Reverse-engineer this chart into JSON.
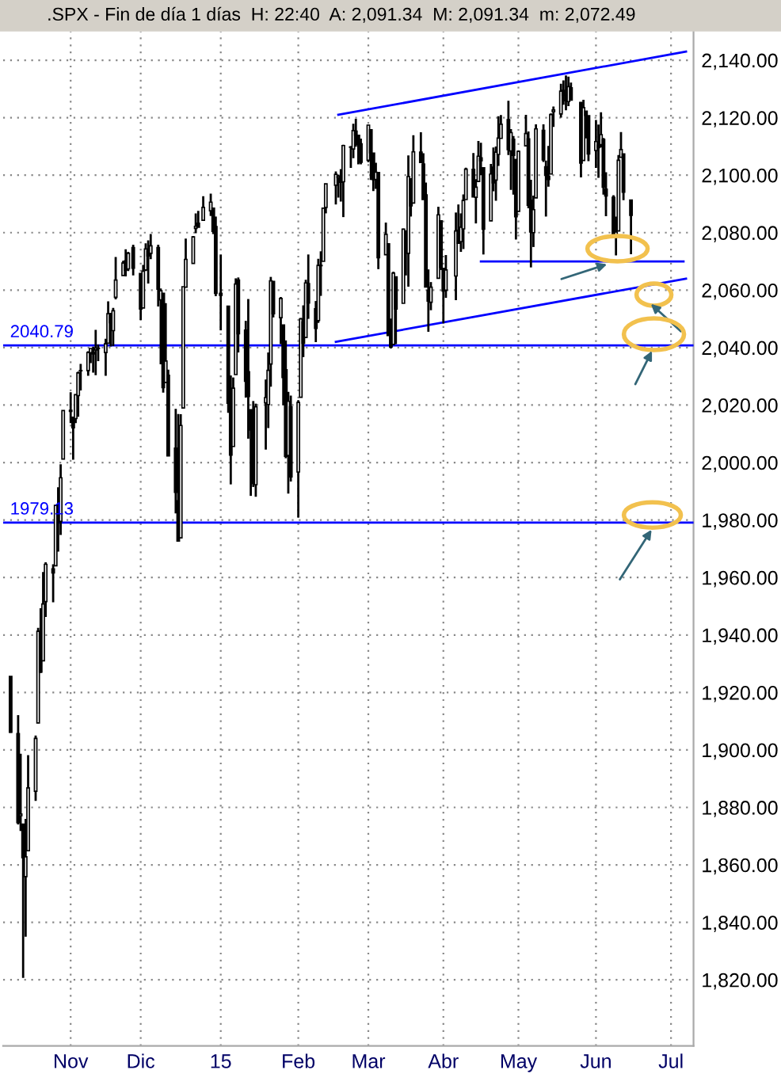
{
  "chart_data": {
    "type": "candlestick",
    "title": ".SPX - Fin de día 1 días  H: 22:40  A: 2,091.34  M: 2,091.34  m: 2,072.49",
    "x": [
      "2014-10-10",
      "2014-10-13",
      "2014-10-14",
      "2014-10-15",
      "2014-10-16",
      "2014-10-17",
      "2014-10-20",
      "2014-10-21",
      "2014-10-22",
      "2014-10-23",
      "2014-10-24",
      "2014-10-27",
      "2014-10-28",
      "2014-10-29",
      "2014-10-30",
      "2014-10-31",
      "2014-11-03",
      "2014-11-04",
      "2014-11-05",
      "2014-11-06",
      "2014-11-07",
      "2014-11-10",
      "2014-11-11",
      "2014-11-12",
      "2014-11-13",
      "2014-11-14",
      "2014-11-17",
      "2014-11-18",
      "2014-11-19",
      "2014-11-20",
      "2014-11-21",
      "2014-11-24",
      "2014-11-25",
      "2014-11-26",
      "2014-11-28",
      "2014-12-01",
      "2014-12-02",
      "2014-12-03",
      "2014-12-04",
      "2014-12-05",
      "2014-12-08",
      "2014-12-09",
      "2014-12-10",
      "2014-12-11",
      "2014-12-12",
      "2014-12-15",
      "2014-12-16",
      "2014-12-17",
      "2014-12-18",
      "2014-12-19",
      "2014-12-22",
      "2014-12-23",
      "2014-12-24",
      "2014-12-26",
      "2014-12-29",
      "2014-12-30",
      "2014-12-31",
      "2015-01-02",
      "2015-01-05",
      "2015-01-06",
      "2015-01-07",
      "2015-01-08",
      "2015-01-09",
      "2015-01-12",
      "2015-01-13",
      "2015-01-14",
      "2015-01-15",
      "2015-01-16",
      "2015-01-20",
      "2015-01-21",
      "2015-01-22",
      "2015-01-23",
      "2015-01-26",
      "2015-01-27",
      "2015-01-28",
      "2015-01-29",
      "2015-01-30",
      "2015-02-02",
      "2015-02-03",
      "2015-02-04",
      "2015-02-05",
      "2015-02-06",
      "2015-02-09",
      "2015-02-10",
      "2015-02-11",
      "2015-02-12",
      "2015-02-13",
      "2015-02-17",
      "2015-02-18",
      "2015-02-19",
      "2015-02-20",
      "2015-02-23",
      "2015-02-24",
      "2015-02-25",
      "2015-02-26",
      "2015-02-27",
      "2015-03-02",
      "2015-03-03",
      "2015-03-04",
      "2015-03-05",
      "2015-03-06",
      "2015-03-09",
      "2015-03-10",
      "2015-03-11",
      "2015-03-12",
      "2015-03-13",
      "2015-03-16",
      "2015-03-17",
      "2015-03-18",
      "2015-03-19",
      "2015-03-20",
      "2015-03-23",
      "2015-03-24",
      "2015-03-25",
      "2015-03-26",
      "2015-03-27",
      "2015-03-30",
      "2015-03-31",
      "2015-04-01",
      "2015-04-02",
      "2015-04-06",
      "2015-04-07",
      "2015-04-08",
      "2015-04-09",
      "2015-04-10",
      "2015-04-13",
      "2015-04-14",
      "2015-04-15",
      "2015-04-16",
      "2015-04-17",
      "2015-04-20",
      "2015-04-21",
      "2015-04-22",
      "2015-04-23",
      "2015-04-24",
      "2015-04-27",
      "2015-04-28",
      "2015-04-29",
      "2015-04-30",
      "2015-05-01",
      "2015-05-04",
      "2015-05-05",
      "2015-05-06",
      "2015-05-07",
      "2015-05-08",
      "2015-05-11",
      "2015-05-12",
      "2015-05-13",
      "2015-05-14",
      "2015-05-15",
      "2015-05-18",
      "2015-05-19",
      "2015-05-20",
      "2015-05-21",
      "2015-05-22",
      "2015-05-26",
      "2015-05-27",
      "2015-05-28",
      "2015-05-29",
      "2015-06-01",
      "2015-06-02",
      "2015-06-03",
      "2015-06-04",
      "2015-06-05",
      "2015-06-08",
      "2015-06-09",
      "2015-06-10",
      "2015-06-11",
      "2015-06-12",
      "2015-06-15"
    ],
    "ohlc": [
      [
        1925.6,
        1925.6,
        1906.0,
        1906.1
      ],
      [
        1905.7,
        1912.1,
        1874.1,
        1874.7
      ],
      [
        1877.1,
        1898.7,
        1871.8,
        1877.7
      ],
      [
        1874.2,
        1874.2,
        1820.7,
        1862.5
      ],
      [
        1855.9,
        1876.0,
        1835.0,
        1862.8
      ],
      [
        1864.9,
        1898.2,
        1864.9,
        1886.8
      ],
      [
        1885.6,
        1905.0,
        1882.3,
        1904.0
      ],
      [
        1909.4,
        1942.5,
        1909.4,
        1941.3
      ],
      [
        1941.3,
        1949.3,
        1926.8,
        1927.1
      ],
      [
        1931.0,
        1961.9,
        1931.0,
        1950.8
      ],
      [
        1951.6,
        1965.3,
        1946.3,
        1964.6
      ],
      [
        1963.0,
        1964.6,
        1951.4,
        1961.6
      ],
      [
        1964.1,
        1985.1,
        1964.1,
        1985.1
      ],
      [
        1983.3,
        1991.4,
        1969.0,
        1982.3
      ],
      [
        1979.5,
        1999.4,
        1974.8,
        1994.7
      ],
      [
        2001.2,
        2018.2,
        2001.2,
        2018.1
      ],
      [
        2018.2,
        2024.5,
        2013.7,
        2017.8
      ],
      [
        2015.8,
        2016.0,
        2001.0,
        2012.1
      ],
      [
        2015.3,
        2023.8,
        2013.7,
        2023.6
      ],
      [
        2023.3,
        2031.6,
        2015.9,
        2031.2
      ],
      [
        2032.0,
        2034.3,
        2025.1,
        2031.9
      ],
      [
        2032.0,
        2038.7,
        2030.2,
        2038.3
      ],
      [
        2038.2,
        2039.7,
        2034.6,
        2039.7
      ],
      [
        2037.8,
        2040.3,
        2031.3,
        2038.3
      ],
      [
        2039.2,
        2046.2,
        2030.4,
        2039.8
      ],
      [
        2039.7,
        2041.1,
        2035.3,
        2039.8
      ],
      [
        2038.3,
        2043.1,
        2030.2,
        2041.3
      ],
      [
        2041.5,
        2056.1,
        2041.5,
        2051.8
      ],
      [
        2051.2,
        2052.1,
        2040.4,
        2048.7
      ],
      [
        2045.9,
        2053.8,
        2040.5,
        2052.8
      ],
      [
        2057.5,
        2071.5,
        2056.8,
        2063.5
      ],
      [
        2065.1,
        2070.2,
        2065.1,
        2069.4
      ],
      [
        2070.2,
        2074.2,
        2064.8,
        2067.0
      ],
      [
        2067.4,
        2073.3,
        2066.6,
        2072.8
      ],
      [
        2074.8,
        2075.8,
        2065.1,
        2067.6
      ],
      [
        2065.8,
        2065.8,
        2049.6,
        2053.4
      ],
      [
        2053.8,
        2068.8,
        2053.8,
        2066.6
      ],
      [
        2067.0,
        2076.3,
        2066.6,
        2074.3
      ],
      [
        2073.6,
        2077.3,
        2062.3,
        2071.9
      ],
      [
        2072.8,
        2079.5,
        2070.8,
        2075.4
      ],
      [
        2074.8,
        2075.8,
        2054.3,
        2060.3
      ],
      [
        2056.6,
        2060.6,
        2034.2,
        2059.8
      ],
      [
        2058.9,
        2058.9,
        2024.3,
        2026.1
      ],
      [
        2027.9,
        2055.5,
        2027.9,
        2035.3
      ],
      [
        2030.4,
        2032.3,
        2002.3,
        2002.3
      ],
      [
        2005.0,
        2018.7,
        1982.3,
        1989.6
      ],
      [
        1986.7,
        2016.9,
        1972.6,
        1972.7
      ],
      [
        1973.8,
        2016.8,
        1973.8,
        2012.9
      ],
      [
        2019.0,
        2061.2,
        2019.0,
        2061.2
      ],
      [
        2061.0,
        2077.9,
        2061.0,
        2070.7
      ],
      [
        2069.3,
        2078.8,
        2069.3,
        2078.5
      ],
      [
        2081.5,
        2086.7,
        2079.8,
        2082.2
      ],
      [
        2083.3,
        2087.6,
        2081.9,
        2081.9
      ],
      [
        2084.3,
        2092.7,
        2084.3,
        2088.8
      ],
      [
        2087.6,
        2093.6,
        2085.8,
        2090.6
      ],
      [
        2088.5,
        2088.5,
        2079.5,
        2080.4
      ],
      [
        2082.1,
        2085.6,
        2057.9,
        2058.9
      ],
      [
        2058.9,
        2072.4,
        2046.0,
        2058.2
      ],
      [
        2054.4,
        2054.4,
        2017.3,
        2020.6
      ],
      [
        2022.2,
        2030.3,
        1992.4,
        2002.6
      ],
      [
        2005.6,
        2029.6,
        2005.6,
        2025.9
      ],
      [
        2030.6,
        2064.1,
        2030.6,
        2062.1
      ],
      [
        2063.5,
        2064.4,
        2038.3,
        2044.8
      ],
      [
        2046.1,
        2049.3,
        2022.6,
        2028.3
      ],
      [
        2031.6,
        2056.9,
        2008.3,
        2023.0
      ],
      [
        2018.4,
        2018.4,
        1988.4,
        2011.3
      ],
      [
        2013.8,
        2021.4,
        1991.5,
        1992.7
      ],
      [
        1992.3,
        2020.5,
        1988.1,
        2019.4
      ],
      [
        2020.8,
        2028.9,
        2004.5,
        2022.6
      ],
      [
        2020.2,
        2038.3,
        2012.0,
        2032.1
      ],
      [
        2034.3,
        2064.6,
        2026.4,
        2063.2
      ],
      [
        2063.0,
        2063.0,
        2050.5,
        2051.8
      ],
      [
        2050.4,
        2057.6,
        2041.2,
        2057.1
      ],
      [
        2047.9,
        2047.9,
        2019.9,
        2029.6
      ],
      [
        2032.3,
        2042.5,
        2001.5,
        2002.2
      ],
      [
        2002.5,
        2024.6,
        1989.2,
        2021.3
      ],
      [
        2019.4,
        2023.3,
        1993.4,
        1995.0
      ],
      [
        1996.7,
        2021.7,
        1980.9,
        2020.9
      ],
      [
        2022.7,
        2050.3,
        2022.7,
        2050.0
      ],
      [
        2048.9,
        2054.7,
        2036.7,
        2041.5
      ],
      [
        2043.5,
        2063.6,
        2043.5,
        2062.5
      ],
      [
        2062.3,
        2072.4,
        2050.0,
        2055.5
      ],
      [
        2053.5,
        2056.2,
        2041.9,
        2046.7
      ],
      [
        2049.4,
        2070.9,
        2048.6,
        2068.6
      ],
      [
        2068.6,
        2073.5,
        2058.0,
        2068.5
      ],
      [
        2070.0,
        2088.5,
        2070.0,
        2088.5
      ],
      [
        2088.8,
        2097.0,
        2086.7,
        2097.0
      ],
      [
        2096.5,
        2101.3,
        2089.8,
        2100.3
      ],
      [
        2099.2,
        2100.2,
        2092.2,
        2099.7
      ],
      [
        2099.3,
        2102.1,
        2090.8,
        2097.5
      ],
      [
        2097.7,
        2110.6,
        2085.4,
        2110.3
      ],
      [
        2109.8,
        2110.1,
        2102.5,
        2109.7
      ],
      [
        2109.1,
        2117.9,
        2105.9,
        2115.5
      ],
      [
        2115.3,
        2119.6,
        2109.9,
        2113.9
      ],
      [
        2113.9,
        2113.9,
        2103.8,
        2110.7
      ],
      [
        2110.9,
        2112.7,
        2103.8,
        2104.5
      ],
      [
        2105.2,
        2117.5,
        2104.5,
        2117.4
      ],
      [
        2115.8,
        2115.8,
        2098.3,
        2107.8
      ],
      [
        2107.7,
        2107.7,
        2094.5,
        2098.5
      ],
      [
        2098.5,
        2104.3,
        2095.2,
        2101.0
      ],
      [
        2100.9,
        2100.9,
        2067.3,
        2071.3
      ],
      [
        2072.3,
        2083.5,
        2072.3,
        2079.4
      ],
      [
        2076.1,
        2076.1,
        2044.2,
        2044.2
      ],
      [
        2044.7,
        2050.1,
        2039.7,
        2040.2
      ],
      [
        2041.1,
        2066.4,
        2041.1,
        2065.9
      ],
      [
        2064.6,
        2064.6,
        2041.2,
        2053.4
      ],
      [
        2055.4,
        2081.4,
        2055.4,
        2081.2
      ],
      [
        2080.6,
        2080.6,
        2065.1,
        2074.3
      ],
      [
        2072.8,
        2106.9,
        2061.2,
        2099.5
      ],
      [
        2098.7,
        2098.7,
        2085.6,
        2089.3
      ],
      [
        2090.3,
        2113.9,
        2090.3,
        2108.1
      ],
      [
        2108.0,
        2114.9,
        2104.4,
        2104.4
      ],
      [
        2103.9,
        2107.6,
        2091.5,
        2091.5
      ],
      [
        2093.1,
        2097.4,
        2061.1,
        2061.1
      ],
      [
        2059.9,
        2067.2,
        2045.5,
        2056.2
      ],
      [
        2055.8,
        2062.8,
        2053.0,
        2061.0
      ],
      [
        2064.1,
        2089.0,
        2064.1,
        2086.2
      ],
      [
        2084.1,
        2084.1,
        2067.0,
        2067.9
      ],
      [
        2067.6,
        2067.6,
        2048.4,
        2059.7
      ],
      [
        2060.0,
        2072.2,
        2057.3,
        2067.0
      ],
      [
        2064.9,
        2087.0,
        2056.5,
        2080.6
      ],
      [
        2080.8,
        2089.8,
        2076.1,
        2076.3
      ],
      [
        2076.9,
        2086.7,
        2073.3,
        2081.9
      ],
      [
        2081.3,
        2093.3,
        2074.3,
        2091.2
      ],
      [
        2091.5,
        2102.6,
        2091.5,
        2102.1
      ],
      [
        2102.0,
        2107.7,
        2092.3,
        2092.4
      ],
      [
        2092.3,
        2098.6,
        2083.2,
        2095.8
      ],
      [
        2097.8,
        2111.9,
        2097.8,
        2106.6
      ],
      [
        2106.0,
        2111.3,
        2100.0,
        2105.0
      ],
      [
        2102.6,
        2102.6,
        2072.4,
        2081.2
      ],
      [
        2084.1,
        2103.9,
        2084.1,
        2100.4
      ],
      [
        2102.8,
        2109.6,
        2094.4,
        2097.3
      ],
      [
        2098.3,
        2110.0,
        2091.1,
        2108.0
      ],
      [
        2107.2,
        2120.5,
        2103.2,
        2112.9
      ],
      [
        2112.8,
        2120.9,
        2112.8,
        2117.7
      ],
      [
        2119.3,
        2125.9,
        2107.0,
        2108.9
      ],
      [
        2108.4,
        2116.0,
        2094.9,
        2114.8
      ],
      [
        2112.5,
        2113.6,
        2093.2,
        2106.9
      ],
      [
        2105.5,
        2105.5,
        2077.6,
        2085.5
      ],
      [
        2087.4,
        2108.4,
        2087.4,
        2108.3
      ],
      [
        2110.2,
        2121.0,
        2110.2,
        2114.5
      ],
      [
        2112.6,
        2115.2,
        2088.5,
        2089.5
      ],
      [
        2091.3,
        2098.4,
        2067.9,
        2080.2
      ],
      [
        2080.0,
        2092.9,
        2075.0,
        2088.0
      ],
      [
        2092.1,
        2117.7,
        2092.1,
        2116.1
      ],
      [
        2115.6,
        2117.7,
        2104.6,
        2105.3
      ],
      [
        2102.9,
        2105.1,
        2085.6,
        2099.9
      ],
      [
        2099.6,
        2110.2,
        2096.0,
        2098.5
      ],
      [
        2100.4,
        2121.5,
        2100.4,
        2121.1
      ],
      [
        2122.1,
        2123.9,
        2116.8,
        2122.7
      ],
      [
        2121.3,
        2131.8,
        2120.0,
        2129.2
      ],
      [
        2129.5,
        2133.0,
        2124.5,
        2127.8
      ],
      [
        2127.8,
        2134.7,
        2122.6,
        2125.9
      ],
      [
        2125.6,
        2134.3,
        2124.0,
        2130.8
      ],
      [
        2130.4,
        2132.2,
        2126.1,
        2126.1
      ],
      [
        2125.3,
        2125.3,
        2099.2,
        2104.2
      ],
      [
        2105.1,
        2126.2,
        2105.1,
        2123.5
      ],
      [
        2122.3,
        2122.3,
        2112.8,
        2120.8
      ],
      [
        2120.7,
        2120.7,
        2104.9,
        2107.4
      ],
      [
        2108.6,
        2119.2,
        2102.5,
        2111.7
      ],
      [
        2110.4,
        2117.6,
        2099.1,
        2109.6
      ],
      [
        2110.6,
        2121.9,
        2109.6,
        2114.1
      ],
      [
        2112.4,
        2112.9,
        2093.2,
        2095.8
      ],
      [
        2095.1,
        2101.0,
        2085.7,
        2092.8
      ],
      [
        2092.3,
        2093.0,
        2079.1,
        2079.3
      ],
      [
        2079.1,
        2085.6,
        2072.1,
        2080.2
      ],
      [
        2080.6,
        2107.0,
        2080.6,
        2105.2
      ],
      [
        2106.2,
        2115.0,
        2106.2,
        2108.9
      ],
      [
        2107.4,
        2107.4,
        2091.3,
        2094.1
      ],
      [
        2091.34,
        2091.34,
        2072.49,
        2086.0
      ]
    ],
    "series": [
      {
        "type": "line",
        "color": "#0000ff",
        "x": [
          "2015-02-18",
          "2015-07-07"
        ],
        "values": [
          2121,
          2143
        ]
      },
      {
        "type": "line",
        "color": "#0000ff",
        "x": [
          "2015-02-17",
          "2015-07-07"
        ],
        "values": [
          2042,
          2064
        ]
      },
      {
        "type": "line",
        "color": "#0000ff",
        "x": [
          "2015-04-16",
          "2015-07-06"
        ],
        "values": [
          2070,
          2070
        ]
      }
    ],
    "ref_lines": [
      {
        "axis": "y",
        "value": 2040.79,
        "label": "2040.79",
        "color": "#0000ff"
      },
      {
        "axis": "y",
        "value": 1979.13,
        "label": "1979.13",
        "color": "#0000ff"
      }
    ],
    "xlim": [
      "2014-10-07",
      "2015-07-10"
    ],
    "xticks": [
      {
        "value": "2014-11-03",
        "label": "Nov"
      },
      {
        "value": "2014-12-01",
        "label": "Dic"
      },
      {
        "value": "2015-01-02",
        "label": "15"
      },
      {
        "value": "2015-02-02",
        "label": "Feb"
      },
      {
        "value": "2015-03-02",
        "label": "Mar"
      },
      {
        "value": "2015-04-01",
        "label": "Abr"
      },
      {
        "value": "2015-05-01",
        "label": "May"
      },
      {
        "value": "2015-06-01",
        "label": "Jun"
      },
      {
        "value": "2015-07-01",
        "label": "Jul"
      }
    ],
    "ylim": [
      1797,
      2150
    ],
    "yticks": [
      {
        "value": 1820,
        "label": "1,820.00"
      },
      {
        "value": 1840,
        "label": "1,840.00"
      },
      {
        "value": 1860,
        "label": "1,860.00"
      },
      {
        "value": 1880,
        "label": "1,880.00"
      },
      {
        "value": 1900,
        "label": "1,900.00"
      },
      {
        "value": 1920,
        "label": "1,920.00"
      },
      {
        "value": 1940,
        "label": "1,940.00"
      },
      {
        "value": 1960,
        "label": "1,960.00"
      },
      {
        "value": 1980,
        "label": "1,980.00"
      },
      {
        "value": 2000,
        "label": "2,000.00"
      },
      {
        "value": 2020,
        "label": "2,020.00"
      },
      {
        "value": 2040,
        "label": "2,040.00"
      },
      {
        "value": 2060,
        "label": "2,060.00"
      },
      {
        "value": 2080,
        "label": "2,080.00"
      },
      {
        "value": 2100,
        "label": "2,100.00"
      },
      {
        "value": 2120,
        "label": "2,120.00"
      },
      {
        "value": 2140,
        "label": "2,140.00"
      }
    ],
    "grid": true
  }
}
